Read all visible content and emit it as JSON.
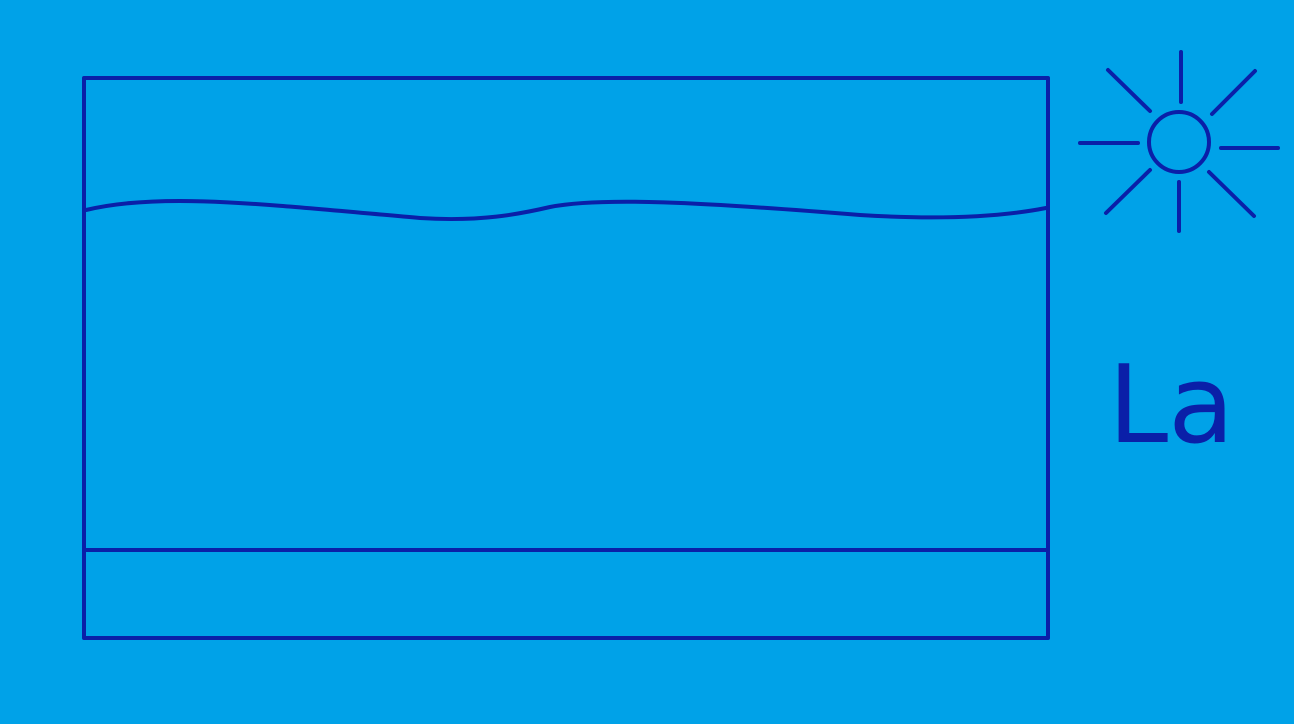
{
  "colors": {
    "background": "#00a2e8",
    "stroke": "#0a1fa8"
  },
  "icons": {
    "sun": "sun-icon"
  },
  "diagram": {
    "label": "La"
  }
}
